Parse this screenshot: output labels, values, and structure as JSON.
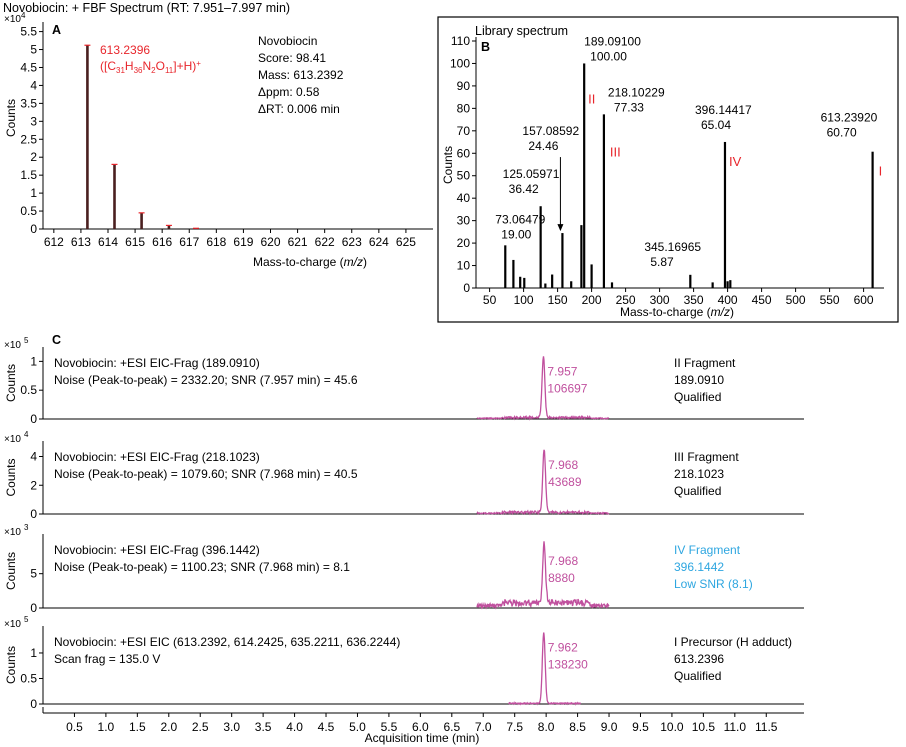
{
  "figure_title": "Novobiocin: + FBF Spectrum (RT: 7.951–7.997 min)",
  "colors": {
    "red": "#e8262c",
    "magenta": "#c0509e",
    "cyan": "#2ea6e0",
    "black": "#000000"
  },
  "chart_data": [
    {
      "id": "A",
      "type": "bar",
      "panel_label": "A",
      "title": "",
      "exponent_label": "×10",
      "exponent": "4",
      "ylabel": "Counts",
      "xlabel_pre": "Mass-to-charge (",
      "xlabel_it": "m/z",
      "xlabel_post": ")",
      "xlim": [
        611.6,
        626
      ],
      "ylim": [
        0,
        5.6
      ],
      "xticks": [
        612,
        613,
        614,
        615,
        616,
        617,
        618,
        619,
        620,
        621,
        622,
        623,
        624,
        625
      ],
      "yticks": [
        0,
        0.5,
        1,
        1.5,
        2,
        2.5,
        3,
        3.5,
        4,
        4.5,
        5,
        5.5
      ],
      "ytick_labels": [
        "0",
        "0.5",
        "1",
        "1.5",
        "2",
        "2.5",
        "3",
        "3.5",
        "4",
        "4.5",
        "5",
        "5.5"
      ],
      "peaks": [
        {
          "x": 613.24,
          "y": 5.12
        },
        {
          "x": 614.24,
          "y": 1.8
        },
        {
          "x": 615.24,
          "y": 0.45
        },
        {
          "x": 616.25,
          "y": 0.1
        },
        {
          "x": 617.25,
          "y": 0.02
        }
      ],
      "peak_label_line1": "613.2396",
      "peak_label_line2": "([C31H36N2O11]+H)+",
      "info": [
        "Novobiocin",
        "Score: 98.41",
        "Mass: 613.2392",
        "Δppm: 0.58",
        "ΔRT: 0.006 min"
      ]
    },
    {
      "id": "B",
      "type": "bar",
      "panel_label": "B",
      "title": "Library spectrum",
      "ylabel": "Counts",
      "xlabel_pre": "Mass-to-charge (",
      "xlabel_it": "m/z",
      "xlabel_post": ")",
      "xlim": [
        30,
        630
      ],
      "ylim": [
        0,
        110
      ],
      "xticks": [
        50,
        100,
        150,
        200,
        250,
        300,
        350,
        400,
        450,
        500,
        550,
        600
      ],
      "yticks": [
        0,
        10,
        20,
        30,
        40,
        50,
        60,
        70,
        80,
        90,
        100,
        110
      ],
      "peaks": [
        {
          "x": 73.06,
          "y": 19.0
        },
        {
          "x": 85,
          "y": 12.5
        },
        {
          "x": 95,
          "y": 5
        },
        {
          "x": 101,
          "y": 4.5
        },
        {
          "x": 125.06,
          "y": 36.42
        },
        {
          "x": 132,
          "y": 2
        },
        {
          "x": 142,
          "y": 6
        },
        {
          "x": 157.09,
          "y": 24.46
        },
        {
          "x": 170,
          "y": 3
        },
        {
          "x": 185,
          "y": 28
        },
        {
          "x": 189.09,
          "y": 100.0
        },
        {
          "x": 200,
          "y": 10.5
        },
        {
          "x": 218.1,
          "y": 77.33
        },
        {
          "x": 230,
          "y": 2.5
        },
        {
          "x": 345.17,
          "y": 5.87
        },
        {
          "x": 378,
          "y": 2.5
        },
        {
          "x": 396.14,
          "y": 65.04
        },
        {
          "x": 400,
          "y": 3
        },
        {
          "x": 404,
          "y": 3.5
        },
        {
          "x": 613.24,
          "y": 60.7
        }
      ],
      "annotations": [
        {
          "mz": "73.06479",
          "val": "19.00",
          "x": 73.06,
          "y": 19.0,
          "roman": ""
        },
        {
          "mz": "125.05971",
          "val": "36.42",
          "x": 125.06,
          "y": 36.42,
          "roman": ""
        },
        {
          "mz": "157.08592",
          "val": "24.46",
          "x": 157.09,
          "y": 24.46,
          "roman": ""
        },
        {
          "mz": "189.09100",
          "val": "100.00",
          "x": 189.09,
          "y": 100.0,
          "roman": "II"
        },
        {
          "mz": "218.10229",
          "val": "77.33",
          "x": 218.1,
          "y": 77.33,
          "roman": "III"
        },
        {
          "mz": "345.16965",
          "val": "5.87",
          "x": 345.17,
          "y": 5.87,
          "roman": ""
        },
        {
          "mz": "396.14417",
          "val": "65.04",
          "x": 396.14,
          "y": 65.04,
          "roman": "IV"
        },
        {
          "mz": "613.23920",
          "val": "60.70",
          "x": 613.24,
          "y": 60.7,
          "roman": "I"
        }
      ]
    },
    {
      "id": "C",
      "type": "line",
      "panel_label": "C",
      "xlabel": "Acquisition time (min)",
      "xlim": [
        0,
        12.1
      ],
      "xticks": [
        0.5,
        1,
        1.5,
        2,
        2.5,
        3,
        3.5,
        4,
        4.5,
        5,
        5.5,
        6,
        6.5,
        7,
        7.5,
        8,
        8.5,
        9,
        9.5,
        10,
        10.5,
        11,
        11.5
      ],
      "xtick_labels": [
        "0.5",
        "1.0",
        "1.5",
        "2.0",
        "2.5",
        "3.0",
        "3.5",
        "4.0",
        "4.5",
        "5.0",
        "5.5",
        "6.0",
        "6.5",
        "7.0",
        "7.5",
        "8.0",
        "8.5",
        "9.0",
        "9.5",
        "10.0",
        "10.5",
        "11.0",
        "11.5"
      ],
      "traces": [
        {
          "exponent": "5",
          "ylabel": "Counts",
          "yticks": [
            0,
            0.5,
            1
          ],
          "ytick_labels": [
            "0",
            "0.5",
            "1"
          ],
          "ymax": 1.18,
          "line1": "Novobiocin: +ESI EIC-Frag (189.0910)",
          "line2": "Noise (Peak-to-peak) = 2332.20; SNR (7.957 min) = 45.6",
          "peak_rt": "7.957",
          "peak_height": "106697",
          "rt": 7.957,
          "height": 1.067,
          "noise": 0.02,
          "xstart": 6.9,
          "xend": 9.0,
          "status": [
            "II Fragment",
            "189.0910",
            "Qualified"
          ],
          "status_color": "black"
        },
        {
          "exponent": "4",
          "ylabel": "Counts",
          "yticks": [
            0,
            2,
            4
          ],
          "ytick_labels": [
            "0",
            "2",
            "4"
          ],
          "ymax": 4.8,
          "line1": "Novobiocin: +ESI EIC-Frag (218.1023)",
          "line2": "Noise (Peak-to-peak) = 1079.60; SNR (7.968 min) = 40.5",
          "peak_rt": "7.968",
          "peak_height": "43689",
          "rt": 7.968,
          "height": 4.369,
          "noise": 0.1,
          "xstart": 6.9,
          "xend": 9.0,
          "status": [
            "III Fragment",
            "218.1023",
            "Qualified"
          ],
          "status_color": "black"
        },
        {
          "exponent": "3",
          "ylabel": "Counts",
          "yticks": [
            0,
            5
          ],
          "ytick_labels": [
            "0",
            "5"
          ],
          "ymax": 10.2,
          "line1": "Novobiocin: +ESI EIC-Frag (396.1442)",
          "line2": "Noise (Peak-to-peak) = 1100.23; SNR (7.968 min) = 8.1",
          "peak_rt": "7.968",
          "peak_height": "8880",
          "rt": 7.968,
          "height": 8.88,
          "noise": 0.6,
          "xstart": 6.9,
          "xend": 9.0,
          "status": [
            "IV Fragment",
            "396.1442",
            "Low SNR (8.1)"
          ],
          "status_color": "cyan"
        },
        {
          "exponent": "5",
          "ylabel": "Counts",
          "yticks": [
            0,
            0.5,
            1
          ],
          "ytick_labels": [
            "0",
            "0.5",
            "1"
          ],
          "ymax": 1.45,
          "line1": "Novobiocin: +ESI EIC (613.2392, 614.2425, 635.2211, 636.2244)",
          "line2": "Scan frag = 135.0 V",
          "peak_rt": "7.962",
          "peak_height": "138230",
          "rt": 7.962,
          "height": 1.382,
          "noise": 0.01,
          "xstart": 7.4,
          "xend": 8.55,
          "status": [
            "I Precursor (H adduct)",
            "613.2396",
            "Qualified"
          ],
          "status_color": "black"
        }
      ]
    }
  ]
}
